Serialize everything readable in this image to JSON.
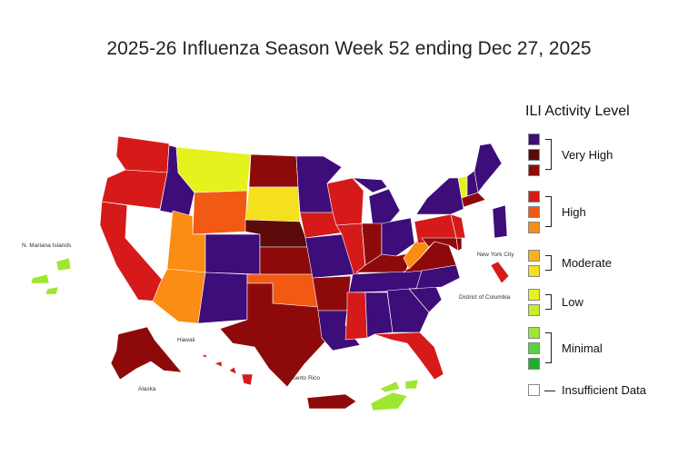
{
  "title": "2025-26 Influenza Season Week 52 ending Dec 27, 2025",
  "legend": {
    "title": "ILI Activity Level",
    "swatches": [
      "#3d0d7a",
      "#5c0a0a",
      "#8e0a0a",
      "#d61a1a",
      "#f25a14",
      "#fb8c14",
      "#f9b31b",
      "#f4e01c",
      "#e6f21e",
      "#c8ee27",
      "#9ee632",
      "#55d63a",
      "#1faf26",
      "#ffffff"
    ],
    "groups": [
      "Very High",
      "High",
      "Moderate",
      "Low",
      "Minimal"
    ],
    "insufficient_label": "Insufficient Data"
  },
  "labels": {
    "mariana": "N. Mariana Islands",
    "hawaii": "Hawaii",
    "alaska": "Alaska",
    "puerto_rico": "Puerto Rico",
    "nyc": "New York City",
    "dc": "District of Columbia"
  },
  "activity": {
    "washington": "#d61a1a",
    "oregon": "#d61a1a",
    "california": "#d61a1a",
    "nevada": "#ffffff",
    "idaho": "#3d0d7a",
    "montana": "#e6f21e",
    "wyoming": "#f25a14",
    "utah": "#fb8c14",
    "arizona": "#fb8c14",
    "colorado": "#3d0d7a",
    "new-mexico": "#3d0d7a",
    "north-dakota": "#8e0a0a",
    "south-dakota": "#f4e01c",
    "nebraska": "#5c0a0a",
    "kansas": "#8e0a0a",
    "oklahoma": "#f25a14",
    "texas": "#8e0a0a",
    "minnesota": "#3d0d7a",
    "iowa": "#d61a1a",
    "missouri": "#3d0d7a",
    "arkansas": "#8e0a0a",
    "louisiana": "#3d0d7a",
    "wisconsin": "#d61a1a",
    "illinois": "#d61a1a",
    "michigan": "#3d0d7a",
    "indiana": "#8e0a0a",
    "ohio": "#3d0d7a",
    "kentucky": "#8e0a0a",
    "tennessee": "#3d0d7a",
    "mississippi": "#d61a1a",
    "alabama": "#3d0d7a",
    "georgia": "#3d0d7a",
    "florida": "#d61a1a",
    "south-carolina": "#3d0d7a",
    "north-carolina": "#3d0d7a",
    "virginia": "#8e0a0a",
    "west-virginia": "#fb8c14",
    "pennsylvania": "#d61a1a",
    "new-york": "#3d0d7a",
    "vermont": "#e6f21e",
    "new-hampshire": "#3d0d7a",
    "maine": "#3d0d7a",
    "massachusetts": "#8e0a0a",
    "new-jersey": "#d61a1a",
    "maryland": "#8e0a0a",
    "delaware": "#8e0a0a",
    "new-york-city": "#3d0d7a",
    "district-of-columbia": "#d61a1a",
    "alaska": "#8e0a0a",
    "hawaii": "#d61a1a",
    "puerto-rico": "#8e0a0a",
    "northern-mariana-islands": "#9ee632",
    "virgin-islands": "#9ee632"
  }
}
